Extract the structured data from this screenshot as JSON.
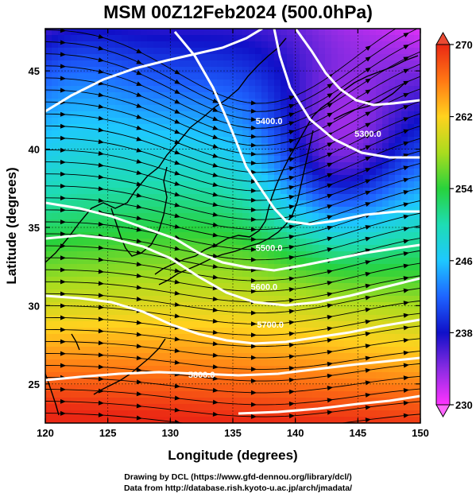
{
  "title": "MSM 00Z12Feb2024 (500.0hPa)",
  "xaxis": {
    "label": "Longitude (degrees)",
    "ticks": [
      120,
      125,
      130,
      135,
      140,
      145,
      150
    ],
    "range": [
      120,
      150
    ]
  },
  "yaxis": {
    "label": "Latitude  (degrees)",
    "ticks": [
      25,
      30,
      35,
      40,
      45
    ],
    "range": [
      22.5,
      47.7
    ]
  },
  "colorbar": {
    "ticks": [
      230,
      238,
      246,
      254,
      262,
      270
    ],
    "range": [
      230,
      270
    ]
  },
  "contours": [
    {
      "label": "5300.0",
      "lon": 145.8,
      "lat": 40.8
    },
    {
      "label": "5400.0",
      "lon": 137.9,
      "lat": 41.6
    },
    {
      "label": "5500.0",
      "lon": 137.9,
      "lat": 33.5
    },
    {
      "label": "5600.0",
      "lon": 137.5,
      "lat": 31.0
    },
    {
      "label": "5700.0",
      "lon": 138.0,
      "lat": 28.6
    },
    {
      "label": "5800.0",
      "lon": 132.5,
      "lat": 25.4
    }
  ],
  "credit": {
    "line1": "Drawing by DCL (https://www.gfd-dennou.org/library/dcl/)",
    "line2": "Data from http://database.rish.kyoto-u.ac.jp/arch/jmadata/"
  }
}
